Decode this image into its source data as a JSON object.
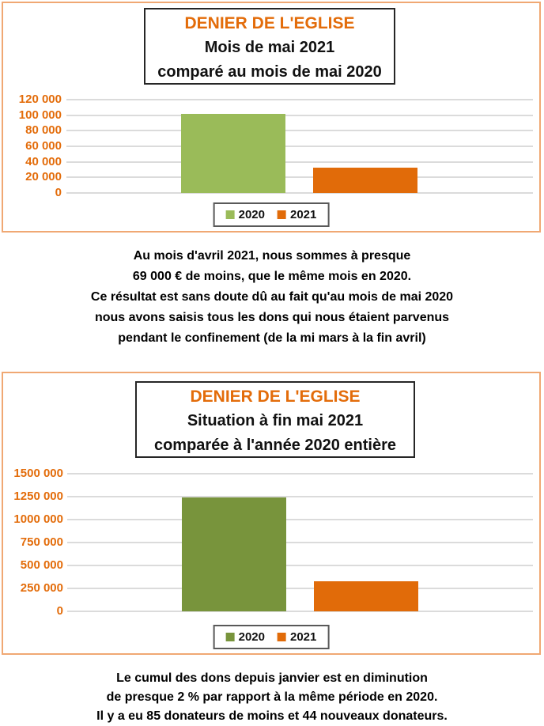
{
  "colors": {
    "accent_orange": "#E36C0A",
    "bar_orange": "#E16B09",
    "bar_green_light": "#9ABB59",
    "bar_green_dark": "#78943C",
    "frame_border": "#F0A873",
    "gridline": "#DBDBDB"
  },
  "chart_data": [
    {
      "type": "bar",
      "title": "DENIER DE L'EGLISE",
      "subtitle_lines": [
        "Mois de mai 2021",
        "comparé au mois de mai 2020"
      ],
      "categories": [
        ""
      ],
      "series": [
        {
          "name": "2020",
          "values": [
            102000
          ],
          "color": "#9ABB59"
        },
        {
          "name": "2021",
          "values": [
            33000
          ],
          "color": "#E16B09"
        }
      ],
      "ylim": [
        0,
        120000
      ],
      "ytick_labels": [
        "120 000",
        "100 000",
        "80 000",
        "60 000",
        "40 000",
        "20 000",
        "0"
      ],
      "xlabel": "",
      "ylabel": "",
      "grid": true,
      "legend_position": "bottom"
    },
    {
      "type": "bar",
      "title": "DENIER DE L'EGLISE",
      "subtitle_lines": [
        "Situation à fin mai 2021",
        "comparée à l'année 2020 entière"
      ],
      "categories": [
        ""
      ],
      "series": [
        {
          "name": "2020",
          "values": [
            1240000
          ],
          "color": "#78943C"
        },
        {
          "name": "2021",
          "values": [
            330000
          ],
          "color": "#E16B09"
        }
      ],
      "ylim": [
        0,
        1500000
      ],
      "ytick_labels": [
        "1500 000",
        "1250 000",
        "1000 000",
        "750 000",
        "500 000",
        "250 000",
        "0"
      ],
      "xlabel": "",
      "ylabel": "",
      "grid": true,
      "legend_position": "bottom"
    }
  ],
  "middle_text": {
    "lines": [
      "Au mois d'avril 2021, nous sommes à presque",
      "69 000 € de moins, que le même mois en 2020.",
      "Ce résultat est sans doute dû au fait qu'au mois de mai 2020",
      "nous avons saisis tous les dons qui nous étaient parvenus",
      "pendant le confinement (de la mi mars à la fin avril)"
    ]
  },
  "bottom_text": {
    "lines": [
      "Le cumul des dons depuis janvier est en diminution",
      "de presque 2 % par rapport à la même période en 2020.",
      "Il y a eu 85 donateurs de moins et 44 nouveaux donateurs."
    ]
  }
}
